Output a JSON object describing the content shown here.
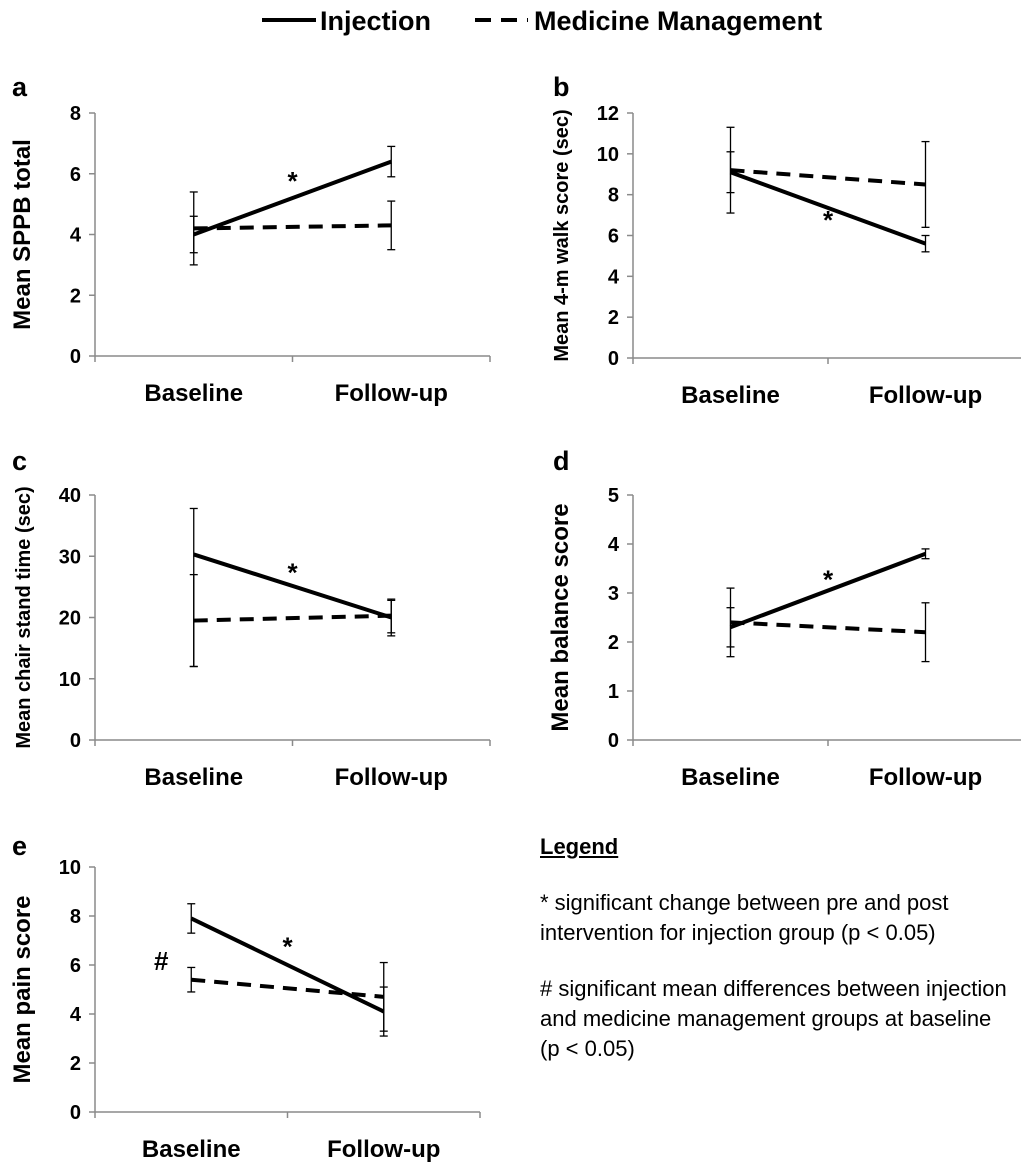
{
  "legend_top": {
    "items": [
      {
        "label": "Injection",
        "style": "solid"
      },
      {
        "label": "Medicine Management",
        "style": "dashed"
      }
    ]
  },
  "legend_box": {
    "title": "Legend",
    "notes": [
      "* significant change between pre and post intervention for injection group (p < 0.05)",
      "# significant mean differences between injection and medicine management groups at baseline (p < 0.05)"
    ]
  },
  "colors": {
    "line": "#000000",
    "axis": "#8a8a8a"
  },
  "chart_data": [
    {
      "panel": "a",
      "type": "line",
      "categories": [
        "Baseline",
        "Follow-up"
      ],
      "ylabel": "Mean SPPB total",
      "ylim": [
        0,
        8
      ],
      "yticks": [
        0,
        2,
        4,
        6,
        8
      ],
      "series": [
        {
          "name": "Injection",
          "style": "solid",
          "values": [
            4.0,
            6.4
          ],
          "err_low": [
            3.0,
            5.9
          ],
          "err_high": [
            5.4,
            6.9
          ]
        },
        {
          "name": "Medicine Management",
          "style": "dashed",
          "values": [
            4.2,
            4.3
          ],
          "err_low": [
            3.4,
            3.5
          ],
          "err_high": [
            4.6,
            5.1
          ]
        }
      ],
      "annotations": [
        {
          "text": "*",
          "between": true,
          "y": 5.8
        }
      ]
    },
    {
      "panel": "b",
      "type": "line",
      "categories": [
        "Baseline",
        "Follow-up"
      ],
      "ylabel": "Mean 4-m walk score (sec)",
      "ylim": [
        0,
        12
      ],
      "yticks": [
        0,
        2,
        4,
        6,
        8,
        10,
        12
      ],
      "series": [
        {
          "name": "Injection",
          "style": "solid",
          "values": [
            9.1,
            5.6
          ],
          "err_low": [
            7.1,
            5.2
          ],
          "err_high": [
            11.3,
            6.0
          ]
        },
        {
          "name": "Medicine Management",
          "style": "dashed",
          "values": [
            9.2,
            8.5
          ],
          "err_low": [
            8.1,
            6.4
          ],
          "err_high": [
            10.1,
            10.6
          ]
        }
      ],
      "annotations": [
        {
          "text": "*",
          "between": true,
          "y": 6.8
        }
      ]
    },
    {
      "panel": "c",
      "type": "line",
      "categories": [
        "Baseline",
        "Follow-up"
      ],
      "ylabel": "Mean chair stand time (sec)",
      "ylim": [
        0,
        40
      ],
      "yticks": [
        0,
        10,
        20,
        30,
        40
      ],
      "series": [
        {
          "name": "Injection",
          "style": "solid",
          "values": [
            30.3,
            20.0
          ],
          "err_low": [
            12.0,
            17.0
          ],
          "err_high": [
            37.8,
            23.0
          ]
        },
        {
          "name": "Medicine Management",
          "style": "dashed",
          "values": [
            19.5,
            20.3
          ],
          "err_low": [
            12.0,
            17.5
          ],
          "err_high": [
            27.0,
            22.8
          ]
        }
      ],
      "annotations": [
        {
          "text": "*",
          "between": true,
          "y": 27.5
        }
      ]
    },
    {
      "panel": "d",
      "type": "line",
      "categories": [
        "Baseline",
        "Follow-up"
      ],
      "ylabel": "Mean balance score",
      "ylim": [
        0,
        5
      ],
      "yticks": [
        0,
        1,
        2,
        3,
        4,
        5
      ],
      "series": [
        {
          "name": "Injection",
          "style": "solid",
          "values": [
            2.3,
            3.8
          ],
          "err_low": [
            1.7,
            3.7
          ],
          "err_high": [
            3.1,
            3.9
          ]
        },
        {
          "name": "Medicine Management",
          "style": "dashed",
          "values": [
            2.4,
            2.2
          ],
          "err_low": [
            1.9,
            1.6
          ],
          "err_high": [
            2.7,
            2.8
          ]
        }
      ],
      "annotations": [
        {
          "text": "*",
          "between": true,
          "y": 3.3
        }
      ]
    },
    {
      "panel": "e",
      "type": "line",
      "categories": [
        "Baseline",
        "Follow-up"
      ],
      "ylabel": "Mean pain score",
      "ylim": [
        0,
        10
      ],
      "yticks": [
        0,
        2,
        4,
        6,
        8,
        10
      ],
      "series": [
        {
          "name": "Injection",
          "style": "solid",
          "values": [
            7.9,
            4.1
          ],
          "err_low": [
            7.3,
            3.1
          ],
          "err_high": [
            8.5,
            5.1
          ]
        },
        {
          "name": "Medicine Management",
          "style": "dashed",
          "values": [
            5.4,
            4.7
          ],
          "err_low": [
            4.9,
            3.3
          ],
          "err_high": [
            5.9,
            6.1
          ]
        }
      ],
      "annotations": [
        {
          "text": "*",
          "between": true,
          "y": 6.8
        },
        {
          "text": "#",
          "left_of_first": true,
          "y": 6.2
        }
      ]
    }
  ]
}
